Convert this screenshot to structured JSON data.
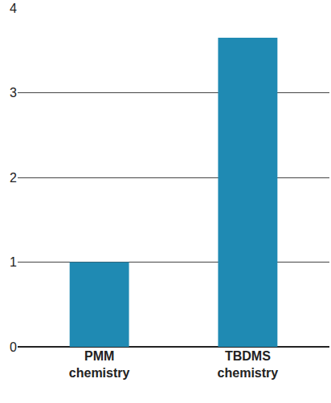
{
  "chart_data": {
    "type": "bar",
    "categories": [
      "PMM chemistry",
      "TBDMS chemistry"
    ],
    "values": [
      1,
      3.65
    ],
    "color": "#1f8ab3",
    "ylim": [
      0,
      4
    ],
    "yticks": [
      0,
      1,
      2,
      3,
      4
    ],
    "grid": true
  }
}
